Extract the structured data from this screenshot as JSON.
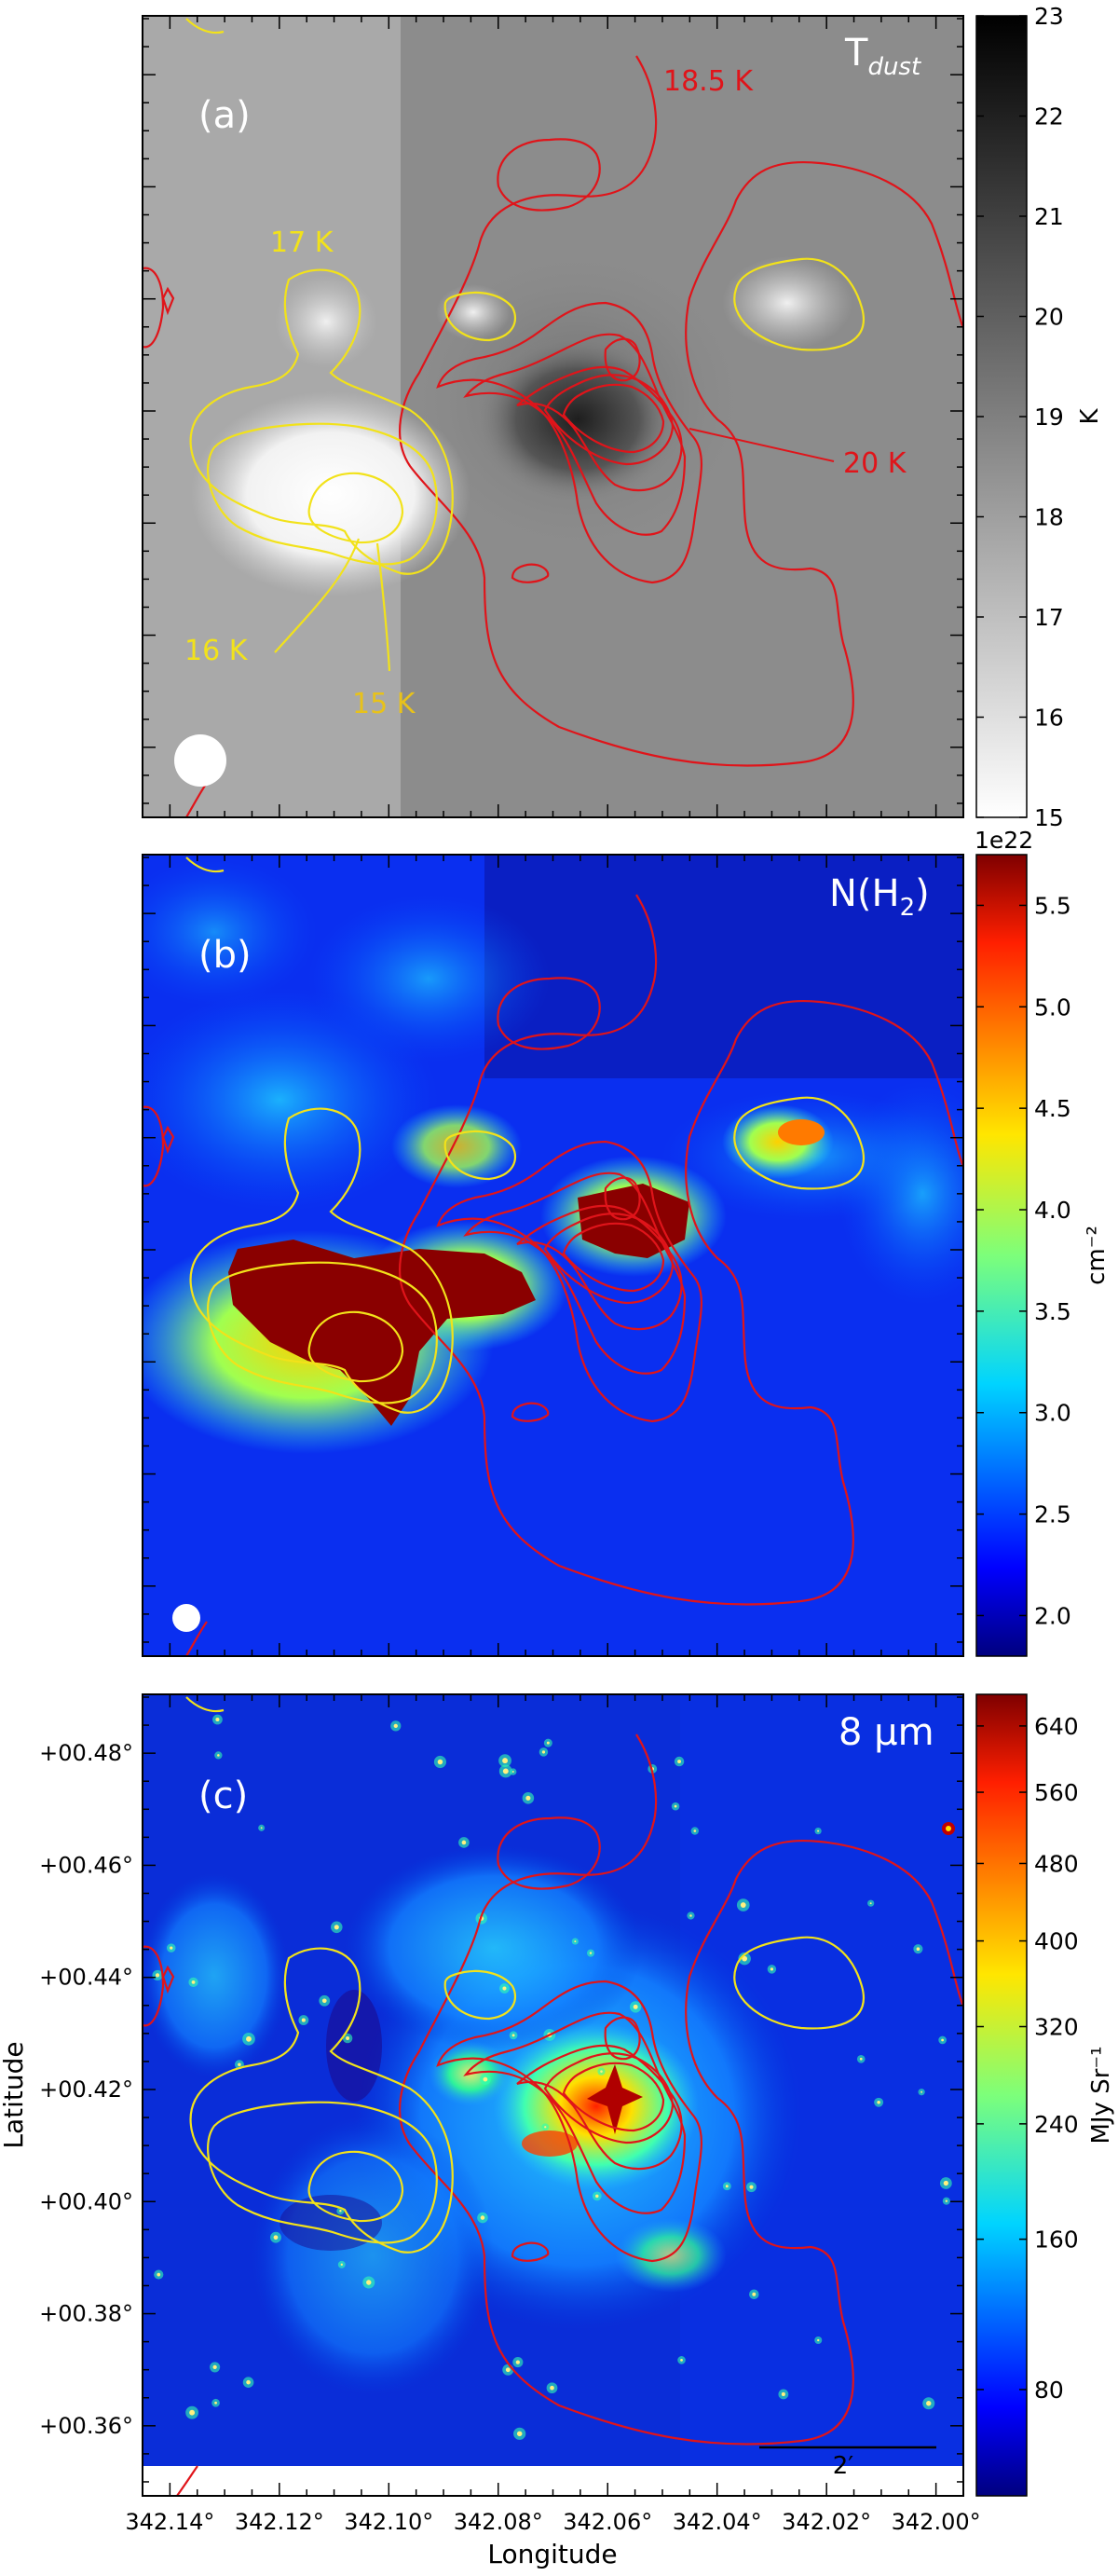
{
  "chart_data": [
    {
      "type": "heatmap",
      "panel_label": "(a)",
      "map_label": "T_dust",
      "map_label_main": "T",
      "map_label_sub": "dust",
      "colormap": "gray_r",
      "colorbar": {
        "min": 15,
        "max": 23,
        "ticks": [
          "15",
          "16",
          "17",
          "18",
          "19",
          "20",
          "21",
          "22",
          "23"
        ],
        "exponent_label": "",
        "label": "K"
      },
      "contour_annotations": [
        {
          "text": "18.5 K",
          "color": "#e0141a"
        },
        {
          "text": "20 K",
          "color": "#e0141a"
        },
        {
          "text": "17 K",
          "color": "#f2e21a"
        },
        {
          "text": "16 K",
          "color": "#f2e21a"
        },
        {
          "text": "15 K",
          "color": "#e8c21a"
        }
      ],
      "beam": true
    },
    {
      "type": "heatmap",
      "panel_label": "(b)",
      "map_label": "N(H2)",
      "map_label_main": "N(H",
      "map_label_sub": "2",
      "map_label_end": ")",
      "colormap": "jet",
      "colorbar": {
        "min": 1.8,
        "max": 5.75,
        "ticks": [
          "2.0",
          "2.5",
          "3.0",
          "3.5",
          "4.0",
          "4.5",
          "5.0",
          "5.5"
        ],
        "tick_values": [
          2.0,
          2.5,
          3.0,
          3.5,
          4.0,
          4.5,
          5.0,
          5.5
        ],
        "exponent_label": "1e22",
        "label": "cm⁻²"
      },
      "beam": true
    },
    {
      "type": "heatmap",
      "panel_label": "(c)",
      "map_label": "8 μm",
      "colormap": "jet",
      "colorbar": {
        "min": 40,
        "max": 680,
        "ticks": [
          "80",
          "160",
          "240",
          "320",
          "400",
          "480",
          "560",
          "640"
        ],
        "tick_values": [
          80,
          160,
          240,
          320,
          400,
          480,
          560,
          640
        ],
        "exponent_label": "",
        "label": "MJy Sr⁻¹",
        "scale": "sqrt"
      },
      "x_axis": {
        "label": "Longitude",
        "ticks": [
          "342.14°",
          "342.12°",
          "342.10°",
          "342.08°",
          "342.06°",
          "342.04°",
          "342.02°",
          "342.00°"
        ],
        "tick_values": [
          342.14,
          342.12,
          342.1,
          342.08,
          342.06,
          342.04,
          342.02,
          342.0
        ]
      },
      "y_axis": {
        "label": "Latitude",
        "ticks": [
          "+00.48°",
          "+00.46°",
          "+00.44°",
          "+00.42°",
          "+00.40°",
          "+00.38°",
          "+00.36°"
        ],
        "tick_values": [
          0.48,
          0.46,
          0.44,
          0.42,
          0.4,
          0.38,
          0.36
        ]
      },
      "scalebar": {
        "label": "2′"
      }
    }
  ]
}
